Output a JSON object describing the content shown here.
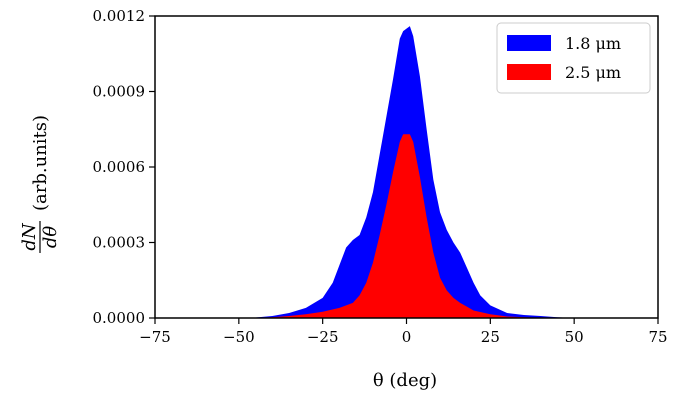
{
  "chart_data": {
    "type": "area",
    "xlabel": "θ (deg)",
    "ylabel_fraction_num": "dN",
    "ylabel_fraction_den": "dθ",
    "ylabel_suffix": "(arb.units)",
    "xlim": [
      -75,
      75
    ],
    "ylim": [
      0,
      0.0012
    ],
    "x_ticks": [
      -75,
      -50,
      -25,
      0,
      25,
      50,
      75
    ],
    "x_tick_labels": [
      "−75",
      "−50",
      "−25",
      "0",
      "25",
      "50",
      "75"
    ],
    "y_ticks": [
      0,
      0.0003,
      0.0006,
      0.0009,
      0.0012
    ],
    "y_tick_labels": [
      "0.0000",
      "0.0003",
      "0.0006",
      "0.0009",
      "0.0012"
    ],
    "grid": false,
    "legend_position": "top-right",
    "series": [
      {
        "name": "1.8 μm",
        "color": "#0000ff",
        "x": [
          -75,
          -50,
          -45,
          -40,
          -35,
          -30,
          -25,
          -22,
          -20,
          -18,
          -16,
          -14,
          -12,
          -10,
          -8,
          -6,
          -4,
          -2,
          -1,
          0,
          1,
          2,
          4,
          6,
          8,
          10,
          12,
          14,
          16,
          18,
          20,
          22,
          25,
          30,
          35,
          40,
          45,
          50,
          75
        ],
        "values": [
          0,
          0,
          2e-06,
          8e-06,
          2e-05,
          4e-05,
          8e-05,
          0.00014,
          0.00021,
          0.00028,
          0.00031,
          0.00033,
          0.0004,
          0.0005,
          0.00065,
          0.0008,
          0.00095,
          0.00111,
          0.00114,
          0.00115,
          0.00116,
          0.00112,
          0.00096,
          0.00075,
          0.00055,
          0.00042,
          0.00035,
          0.0003,
          0.00026,
          0.0002,
          0.00014,
          9e-05,
          5e-05,
          2e-05,
          1.2e-05,
          8e-06,
          3e-06,
          0,
          0
        ]
      },
      {
        "name": "2.5 μm",
        "color": "#ff0000",
        "x": [
          -75,
          -45,
          -40,
          -35,
          -30,
          -25,
          -20,
          -16,
          -14,
          -12,
          -10,
          -8,
          -6,
          -4,
          -2,
          -1,
          0,
          1,
          2,
          4,
          6,
          8,
          10,
          12,
          14,
          16,
          18,
          20,
          25,
          30,
          35,
          40,
          45,
          75
        ],
        "values": [
          0,
          0,
          3e-06,
          8e-06,
          1.5e-05,
          2.5e-05,
          4e-05,
          6e-05,
          9e-05,
          0.00014,
          0.00022,
          0.00033,
          0.00045,
          0.00058,
          0.0007,
          0.00073,
          0.00073,
          0.00073,
          0.0007,
          0.00056,
          0.0004,
          0.00026,
          0.00016,
          0.00011,
          8e-05,
          6e-05,
          4.5e-05,
          3e-05,
          1.5e-05,
          6e-06,
          3e-06,
          1e-06,
          0,
          0
        ]
      }
    ]
  }
}
